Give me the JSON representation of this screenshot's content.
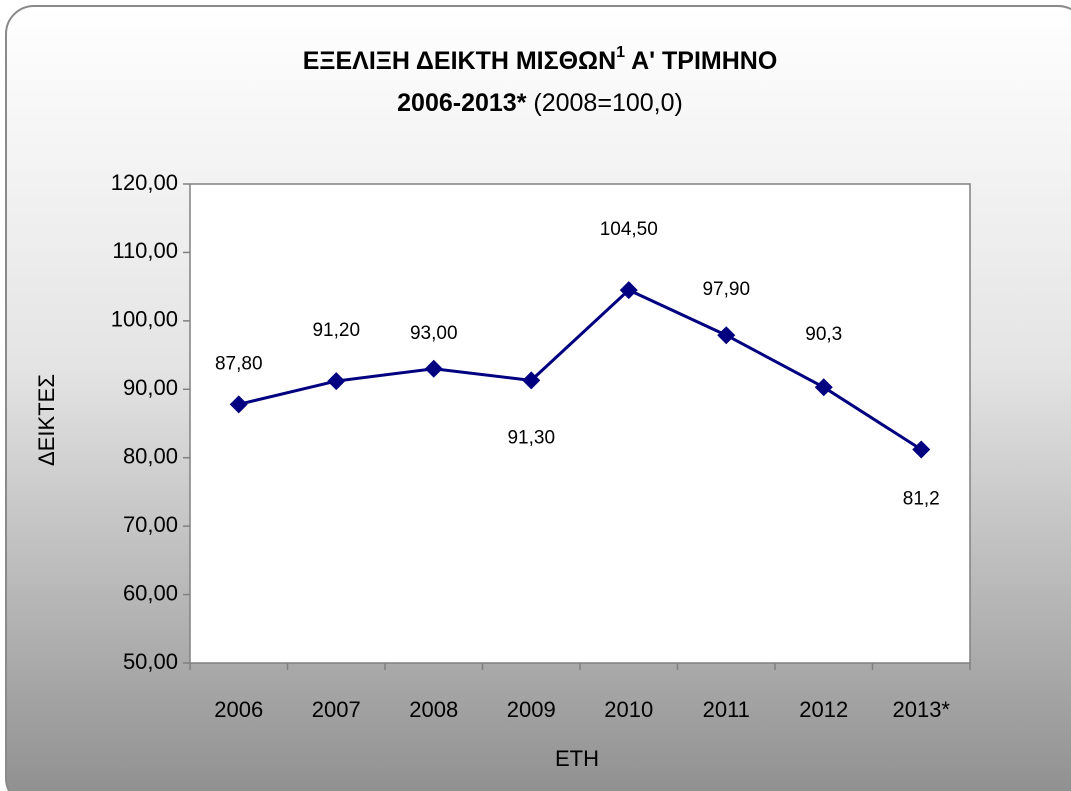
{
  "chart_data": {
    "type": "line",
    "title": {
      "main": "ΕΞΕΛΙΞΗ ΔΕΙΚΤΗ ΜΙΣΘΩΝ",
      "sup": "1",
      "rest": " Α' ΤΡΙΜΗΝΟ"
    },
    "subtitle": {
      "bold": "2006-2013*",
      "rest": " (2008=100,0)"
    },
    "y_label": "ΔΕΙΚΤΕΣ",
    "x_label": "ΕΤΗ",
    "categories": [
      "2006",
      "2007",
      "2008",
      "2009",
      "2010",
      "2011",
      "2012",
      "2013*"
    ],
    "series": [
      {
        "name": "ΔΕΙΚΤΕΣ",
        "color": "#000080",
        "values": [
          87.8,
          91.2,
          93.0,
          91.3,
          104.5,
          97.9,
          90.3,
          81.2
        ],
        "value_labels": [
          "87,80",
          "91,20",
          "93,00",
          "91,30",
          "104,50",
          "97,90",
          "90,3",
          "81,2"
        ]
      }
    ],
    "ylim": [
      50,
      120
    ],
    "yticks": [
      {
        "value": 50,
        "label": "50,00"
      },
      {
        "value": 60,
        "label": "60,00"
      },
      {
        "value": 70,
        "label": "70,00"
      },
      {
        "value": 80,
        "label": "80,00"
      },
      {
        "value": 90,
        "label": "90,00"
      },
      {
        "value": 100,
        "label": "100,00"
      },
      {
        "value": 110,
        "label": "110,00"
      },
      {
        "value": 120,
        "label": "120,00"
      }
    ],
    "grid": false
  }
}
